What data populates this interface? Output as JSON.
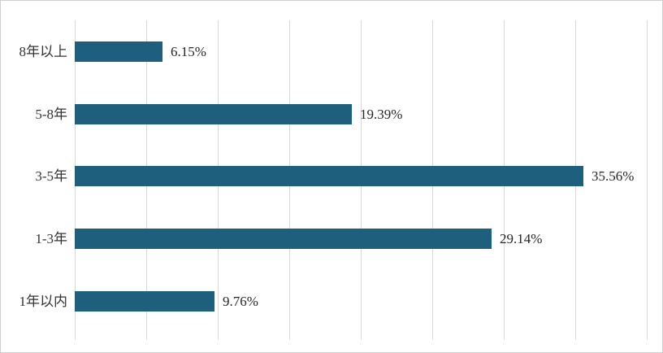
{
  "chart_data": {
    "type": "bar",
    "orientation": "horizontal",
    "title": "",
    "categories": [
      "8年以上",
      "5-8年",
      "3-5年",
      "1-3年",
      "1年以内"
    ],
    "values": [
      6.15,
      19.39,
      35.56,
      29.14,
      9.76
    ],
    "value_labels": [
      "6.15%",
      "19.39%",
      "35.56%",
      "29.14%",
      "9.76%"
    ],
    "xlim": [
      0,
      40
    ],
    "grid_step_percent": 5,
    "grid": true,
    "legend": false,
    "axis_tick_labels_visible": false,
    "colors": {
      "bar": "#1e5f7d",
      "gridline": "#d9d9d9",
      "label_text": "#333333",
      "value_text": "#262626",
      "border": "#cfcfcf",
      "background": "#ffffff"
    }
  }
}
